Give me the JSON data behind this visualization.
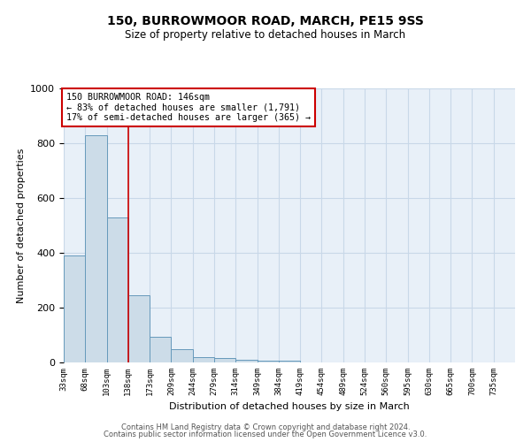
{
  "title": "150, BURROWMOOR ROAD, MARCH, PE15 9SS",
  "subtitle": "Size of property relative to detached houses in March",
  "xlabel": "Distribution of detached houses by size in March",
  "ylabel": "Number of detached properties",
  "bar_color": "#ccdce8",
  "bar_edge_color": "#6699bb",
  "bin_labels": [
    "33sqm",
    "68sqm",
    "103sqm",
    "138sqm",
    "173sqm",
    "209sqm",
    "244sqm",
    "279sqm",
    "314sqm",
    "349sqm",
    "384sqm",
    "419sqm",
    "454sqm",
    "489sqm",
    "524sqm",
    "560sqm",
    "595sqm",
    "630sqm",
    "665sqm",
    "700sqm",
    "735sqm"
  ],
  "bar_heights": [
    390,
    830,
    530,
    245,
    95,
    50,
    20,
    15,
    10,
    8,
    8,
    0,
    0,
    0,
    0,
    0,
    0,
    0,
    0,
    0,
    0
  ],
  "ylim": [
    0,
    1000
  ],
  "red_line_x": 3,
  "annotation_line1": "150 BURROWMOOR ROAD: 146sqm",
  "annotation_line2": "← 83% of detached houses are smaller (1,791)",
  "annotation_line3": "17% of semi-detached houses are larger (365) →",
  "annotation_box_color": "#ffffff",
  "annotation_box_edge": "#cc0000",
  "red_line_color": "#cc0000",
  "grid_color": "#c8d8e8",
  "background_color": "#e8f0f8",
  "footer_line1": "Contains HM Land Registry data © Crown copyright and database right 2024.",
  "footer_line2": "Contains public sector information licensed under the Open Government Licence v3.0."
}
